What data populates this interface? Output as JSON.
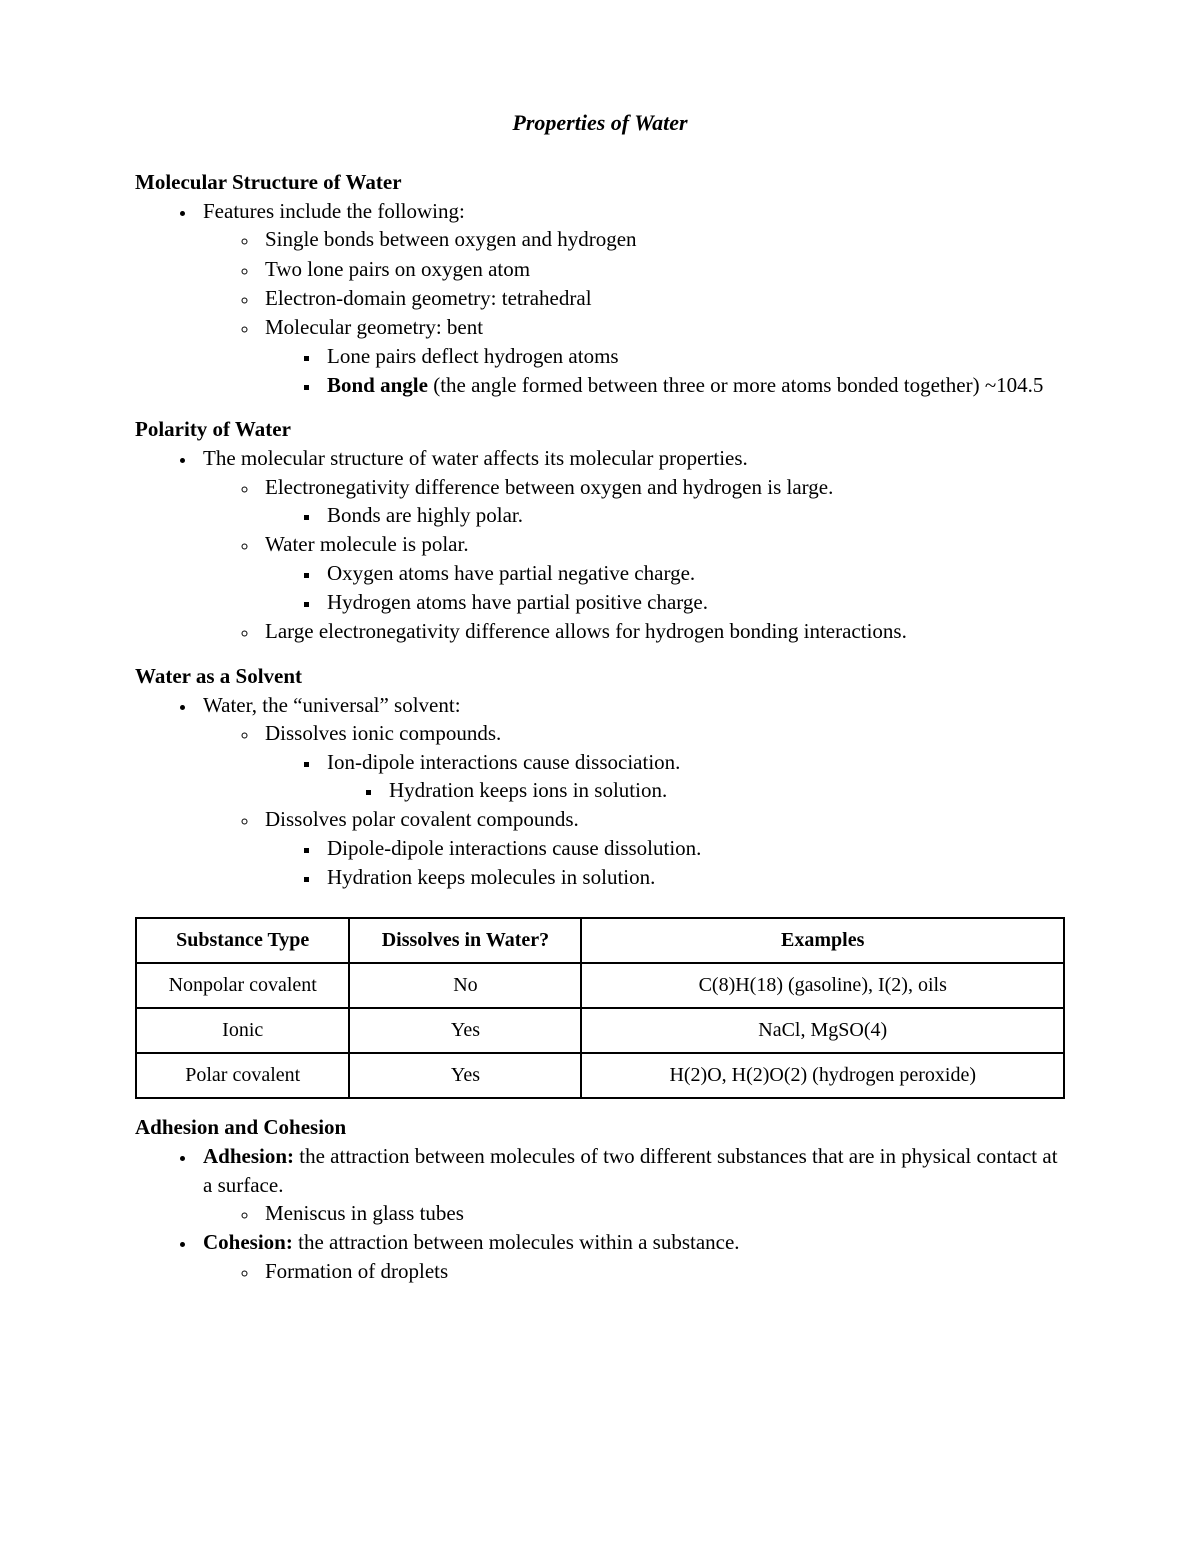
{
  "title": "Properties of Water",
  "sections": {
    "molecular": {
      "heading": "Molecular Structure of Water",
      "intro": "Features include the following:",
      "items": {
        "a": "Single bonds between oxygen and hydrogen",
        "b": "Two lone pairs on oxygen atom",
        "c": "Electron-domain geometry: tetrahedral",
        "d": "Molecular geometry: bent",
        "d1": "Lone pairs deflect hydrogen atoms",
        "d2_bold": "Bond angle",
        "d2_rest": " (the angle formed between three or more atoms bonded together) ~104.5"
      }
    },
    "polarity": {
      "heading": "Polarity of Water",
      "intro": "The molecular structure of water affects its molecular properties.",
      "items": {
        "a": "Electronegativity difference between oxygen and hydrogen is large.",
        "a1": "Bonds are highly polar.",
        "b": "Water molecule is polar.",
        "b1": "Oxygen atoms have partial negative charge.",
        "b2": "Hydrogen atoms have partial positive charge.",
        "c": "Large electronegativity difference allows for hydrogen bonding interactions."
      }
    },
    "solvent": {
      "heading": "Water as a Solvent",
      "intro": "Water, the “universal” solvent:",
      "items": {
        "a": "Dissolves ionic compounds.",
        "a1": "Ion-dipole interactions cause dissociation.",
        "a1a": "Hydration keeps ions in solution.",
        "b": "Dissolves polar covalent compounds.",
        "b1": "Dipole-dipole interactions cause dissolution.",
        "b2": "Hydration keeps molecules in solution."
      }
    },
    "adhesion": {
      "heading": "Adhesion and Cohesion",
      "items": {
        "a_bold": "Adhesion:",
        "a_rest": " the attraction between molecules of two different substances that are in physical contact at a surface.",
        "a1": "Meniscus in glass tubes",
        "b_bold": "Cohesion:",
        "b_rest": " the attraction between molecules within a substance.",
        "b1": "Formation of droplets"
      }
    }
  },
  "table": {
    "headers": {
      "c1": "Substance Type",
      "c2": "Dissolves in Water?",
      "c3": "Examples"
    },
    "rows": [
      {
        "c1": "Nonpolar covalent",
        "c2": "No",
        "c3": "C(8)H(18) (gasoline), I(2), oils"
      },
      {
        "c1": "Ionic",
        "c2": "Yes",
        "c3": "NaCl, MgSO(4)"
      },
      {
        "c1": "Polar covalent",
        "c2": "Yes",
        "c3": "H(2)O, H(2)O(2) (hydrogen peroxide)"
      }
    ]
  }
}
